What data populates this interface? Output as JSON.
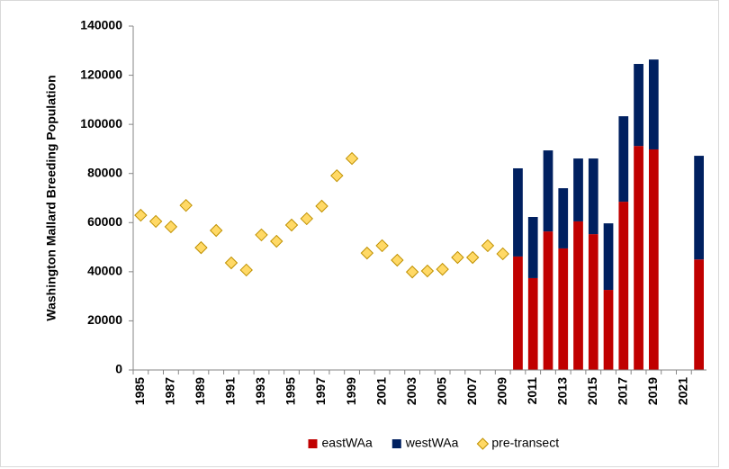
{
  "chart_data": {
    "type": "bar",
    "stacked": true,
    "ylabel": "Washington Mallard Breeding Population",
    "categories": [
      "1985",
      null,
      "1987",
      null,
      "1989",
      null,
      "1991",
      null,
      "1993",
      null,
      "1995",
      null,
      "1997",
      null,
      "1999",
      null,
      "2001",
      null,
      "2003",
      null,
      "2005",
      null,
      "2007",
      null,
      "2009",
      null,
      "2011",
      null,
      "2013",
      null,
      "2015",
      null,
      "2017",
      null,
      "2019",
      null,
      "2021",
      null
    ],
    "series": [
      {
        "name": "eastWAa",
        "type": "bar",
        "color": "#c00000",
        "values": [
          null,
          null,
          null,
          null,
          null,
          null,
          null,
          null,
          null,
          null,
          null,
          null,
          null,
          null,
          null,
          null,
          null,
          null,
          null,
          null,
          null,
          null,
          null,
          null,
          null,
          46200,
          37400,
          56400,
          49500,
          60500,
          55300,
          32600,
          68500,
          91200,
          89800,
          null,
          null,
          45000
        ]
      },
      {
        "name": "westWAa",
        "type": "bar",
        "color": "#002060",
        "values": [
          null,
          null,
          null,
          null,
          null,
          null,
          null,
          null,
          null,
          null,
          null,
          null,
          null,
          null,
          null,
          null,
          null,
          null,
          null,
          null,
          null,
          null,
          null,
          null,
          null,
          35900,
          24900,
          33000,
          24500,
          25600,
          30800,
          27100,
          34800,
          33400,
          36600,
          null,
          null,
          42200
        ]
      },
      {
        "name": "pre-transect",
        "type": "scatter",
        "color": "#ffd966",
        "values": [
          63000,
          60500,
          58300,
          67000,
          49800,
          56800,
          43600,
          40700,
          55000,
          52400,
          59000,
          61600,
          66700,
          79100,
          86100,
          47600,
          50600,
          44700,
          39900,
          40300,
          41000,
          45800,
          45800,
          50600,
          47300,
          null,
          null,
          null,
          null,
          null,
          null,
          null,
          null,
          null,
          null,
          null,
          null,
          null
        ]
      }
    ],
    "ylim": [
      0,
      140000
    ],
    "yticks": [
      0,
      20000,
      40000,
      60000,
      80000,
      100000,
      120000,
      140000
    ],
    "grid": false,
    "legend": "bottom"
  }
}
